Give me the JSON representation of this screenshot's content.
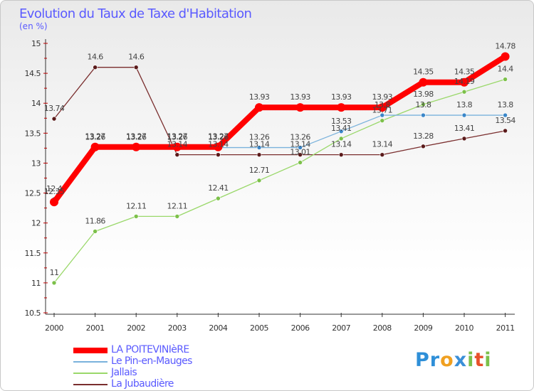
{
  "title": "Evolution du Taux de Taxe d'Habitation",
  "subtitle": "(en %)",
  "brand": {
    "letters": [
      "P",
      "r",
      "o",
      "x",
      "i",
      "t",
      "i"
    ],
    "colors": [
      "#2e8fd8",
      "#2e8fd8",
      "#f0a020",
      "#3a8fd8",
      "#7cc04a",
      "#e8502a",
      "#7cc04a"
    ]
  },
  "chart_data": {
    "type": "line",
    "title": "Evolution du Taux de Taxe d'Habitation",
    "ylabel": "(en %)",
    "xlabel": "",
    "ylim": [
      10.5,
      15
    ],
    "yticks": [
      "10.5",
      "11",
      "11.5",
      "12",
      "12.5",
      "13",
      "13.5",
      "14",
      "14.5",
      "15"
    ],
    "yticks_values": [
      10.5,
      11,
      11.5,
      12,
      12.5,
      13,
      13.5,
      14,
      14.5,
      15
    ],
    "categories": [
      "2000",
      "2001",
      "2002",
      "2003",
      "2004",
      "2005",
      "2006",
      "2007",
      "2008",
      "2009",
      "2010",
      "2011"
    ],
    "grid": false,
    "legend_position": "bottom-left",
    "series": [
      {
        "name": "La Jubaudière",
        "color": "#7a2e2e",
        "values": [
          13.74,
          14.6,
          14.6,
          13.14,
          13.14,
          13.14,
          13.14,
          13.14,
          13.14,
          13.28,
          13.41,
          13.54
        ],
        "labels": [
          "13.74",
          "14.6",
          "14.6",
          "13.14",
          "13.14",
          "13.14",
          "13.14",
          "13.14",
          "13.14",
          "13.28",
          "13.41",
          "13.54"
        ]
      },
      {
        "name": "Jallais",
        "color": "#8fd45a",
        "values": [
          11,
          11.86,
          12.11,
          12.11,
          12.41,
          12.71,
          13.01,
          13.41,
          13.71,
          13.98,
          14.19,
          14.4
        ],
        "labels": [
          "11",
          "11.86",
          "12.11",
          "12.11",
          "12.41",
          "12.71",
          "13.01",
          "13.41",
          "13.71",
          "13.98",
          "14.19",
          "14.4"
        ]
      },
      {
        "name": "Le Pin-en-Mauges",
        "color": "#6aaad8",
        "values": [
          12.4,
          13.26,
          13.26,
          13.26,
          13.26,
          13.26,
          13.26,
          13.53,
          13.8,
          13.8,
          13.8,
          13.8
        ],
        "labels": [
          "12.4",
          "13.26",
          "13.26",
          "13.26",
          "13.26",
          "13.26",
          "13.26",
          "13.53",
          "13.8",
          "13.8",
          "13.8",
          "13.8"
        ]
      },
      {
        "name": "LA POITEVINIèRE",
        "color": "#ff0000",
        "values": [
          12.35,
          13.27,
          13.27,
          13.27,
          13.27,
          13.93,
          13.93,
          13.93,
          13.93,
          14.35,
          14.35,
          14.78
        ],
        "labels": [
          "12.35",
          "13.27",
          "13.27",
          "13.27",
          "13.27",
          "13.93",
          "13.93",
          "13.93",
          "13.93",
          "14.35",
          "14.35",
          "14.78"
        ]
      }
    ],
    "legend_order": [
      "LA POITEVINIèRE",
      "Le Pin-en-Mauges",
      "Jallais",
      "La Jubaudière"
    ]
  }
}
